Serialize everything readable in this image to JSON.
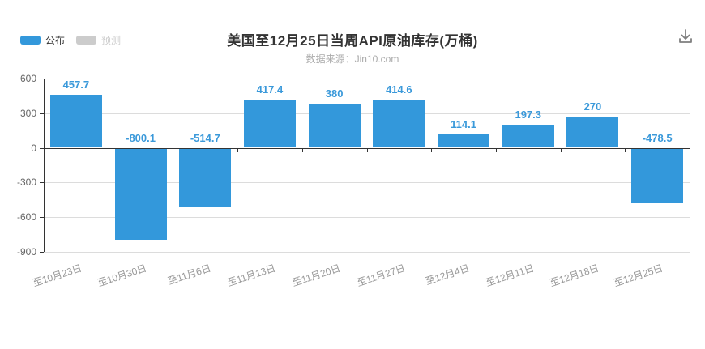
{
  "header": {
    "download_icon": "download-icon"
  },
  "legend": {
    "items": [
      {
        "label": "公布",
        "color": "#3398db",
        "text_color": "#333333",
        "active": true
      },
      {
        "label": "预测",
        "color": "#cccccc",
        "text_color": "#cccccc",
        "active": false
      }
    ]
  },
  "chart_data": {
    "type": "bar",
    "title": "美国至12月25日当周API原油库存(万桶)",
    "subtitle": "数据来源：Jin10.com",
    "categories": [
      "至10月23日",
      "至10月30日",
      "至11月6日",
      "至11月13日",
      "至11月20日",
      "至11月27日",
      "至12月4日",
      "至12月11日",
      "至12月18日",
      "至12月25日"
    ],
    "series": [
      {
        "name": "公布",
        "values": [
          457.7,
          -800.1,
          -514.7,
          417.4,
          380,
          414.6,
          114.1,
          197.3,
          270,
          -478.5
        ],
        "color": "#3398db"
      }
    ],
    "yticks": [
      600,
      300,
      0,
      -300,
      -600,
      -900
    ],
    "ylim": [
      -900,
      600
    ],
    "grid": true,
    "legend_position": "top-left",
    "label_color": "#3a99da",
    "axis_color": "#333333",
    "grid_color": "#dcdcdc",
    "x_label_color": "#999999",
    "y_label_color": "#666666"
  }
}
